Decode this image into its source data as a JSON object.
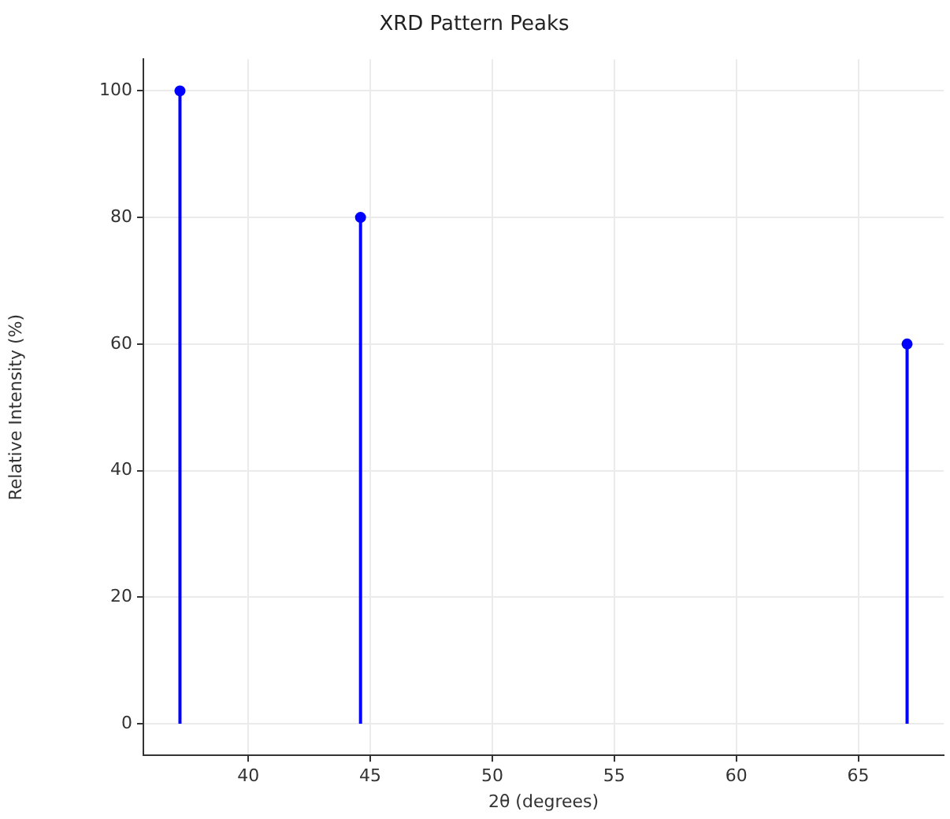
{
  "chart_data": {
    "type": "lollipop",
    "title": "XRD Pattern Peaks",
    "xlabel": "2θ (degrees)",
    "ylabel": "Relative Intensity (%)",
    "x": [
      37.2,
      44.6,
      67.0
    ],
    "series": [
      {
        "color": "#0000ff",
        "values": [
          100,
          80,
          60
        ]
      }
    ],
    "xlim": [
      35.7,
      68.5
    ],
    "xticks": [
      40,
      45,
      50,
      55,
      60,
      65
    ],
    "ylim": [
      -5,
      105
    ],
    "yticks": [
      0,
      20,
      40,
      60,
      80,
      100
    ],
    "grid": true,
    "marker": "circle",
    "legend": false
  }
}
